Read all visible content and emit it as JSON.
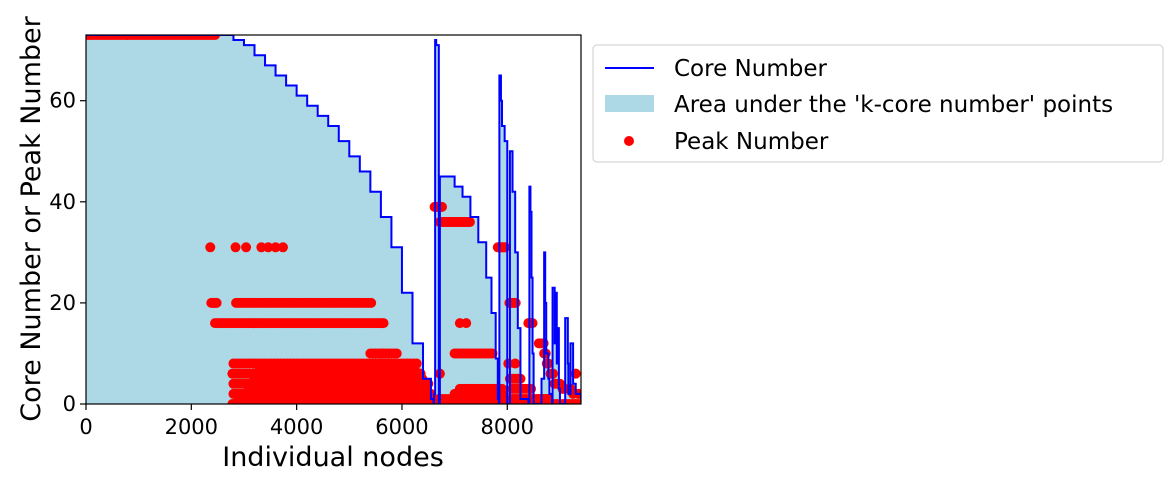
{
  "chart_data": {
    "type": "line",
    "xlabel": "Individual nodes",
    "ylabel": "Core Number or Peak Number",
    "xlim": [
      0,
      9400
    ],
    "ylim": [
      0,
      73
    ],
    "xticks": [
      0,
      2000,
      4000,
      6000,
      8000
    ],
    "yticks": [
      0,
      20,
      40,
      60
    ],
    "grid": false,
    "legend_placement": "outside upper-right",
    "colors": {
      "core": "#0000ff",
      "area": "#add8e6",
      "peak": "#ff0000"
    },
    "series": [
      {
        "name": "Core Number",
        "kind": "line",
        "x": [
          0,
          2450,
          2800,
          3000,
          3200,
          3400,
          3600,
          3800,
          4000,
          4200,
          4400,
          4600,
          4800,
          5000,
          5200,
          5400,
          5600,
          5800,
          6000,
          6200,
          6400,
          6550,
          6600,
          6610,
          6630,
          6650,
          6700,
          6720,
          6750,
          6800,
          6900,
          7000,
          7150,
          7300,
          7450,
          7600,
          7700,
          7780,
          7820,
          7840,
          7850,
          7880,
          7900,
          7950,
          8000,
          8050,
          8100,
          8150,
          8200,
          8250,
          8400,
          8420,
          8440,
          8460,
          8480,
          8500,
          8600,
          8650,
          8700,
          8720,
          8740,
          8780,
          8800,
          8850,
          8860,
          8900,
          8920,
          8940,
          8960,
          8980,
          9000,
          9050,
          9100,
          9150,
          9160,
          9200,
          9250,
          9300,
          9400
        ],
        "y": [
          73,
          73,
          72,
          71,
          69,
          67,
          65,
          63,
          61,
          59,
          57,
          55,
          52,
          49,
          46,
          42,
          37,
          31,
          22,
          12,
          5,
          1,
          0,
          2,
          72,
          71,
          0,
          45,
          45,
          45,
          45,
          43,
          41,
          37,
          32,
          25,
          18,
          9,
          1,
          0,
          65,
          60,
          55,
          52,
          0,
          50,
          42,
          30,
          15,
          1,
          0,
          43,
          38,
          25,
          10,
          0,
          0,
          5,
          30,
          20,
          10,
          5,
          2,
          0,
          23,
          12,
          22,
          8,
          15,
          3,
          0,
          0,
          17,
          8,
          2,
          12,
          4,
          2,
          1
        ]
      },
      {
        "name": "Area under the 'k-core number' points",
        "kind": "area"
      },
      {
        "name": "Peak Number",
        "kind": "scatter",
        "groups": [
          {
            "y": 73,
            "x_from": 0,
            "x_to": 2450,
            "step": 50
          },
          {
            "y": 31,
            "x_list": [
              2360,
              2840,
              3040,
              3330,
              3460,
              3600,
              3740
            ]
          },
          {
            "y": 20,
            "x_from": 2380,
            "x_to": 2480,
            "step": 25
          },
          {
            "y": 20,
            "x_from": 2850,
            "x_to": 5450,
            "step": 45
          },
          {
            "y": 16,
            "x_from": 2450,
            "x_to": 5650,
            "step": 40
          },
          {
            "y": 10,
            "x_from": 5400,
            "x_to": 5900,
            "step": 50
          },
          {
            "y": 8,
            "x_from": 2800,
            "x_to": 6300,
            "step": 60
          },
          {
            "y": 7,
            "x_from": 3300,
            "x_to": 6300,
            "step": 70
          },
          {
            "y": 6,
            "x_from": 2780,
            "x_to": 6400,
            "step": 55
          },
          {
            "y": 5,
            "x_from": 3200,
            "x_to": 6400,
            "step": 65
          },
          {
            "y": 4,
            "x_from": 2800,
            "x_to": 6500,
            "step": 50
          },
          {
            "y": 3,
            "x_from": 3100,
            "x_to": 6500,
            "step": 60
          },
          {
            "y": 2,
            "x_from": 2800,
            "x_to": 6550,
            "step": 50
          },
          {
            "y": 1,
            "x_from": 2900,
            "x_to": 6550,
            "step": 55
          },
          {
            "y": 0,
            "x_from": 2780,
            "x_to": 6600,
            "step": 50
          },
          {
            "y": 39,
            "x_from": 6620,
            "x_to": 6760,
            "step": 20
          },
          {
            "y": 36,
            "x_from": 6720,
            "x_to": 7300,
            "step": 30
          },
          {
            "y": 16,
            "x_list": [
              7100,
              7220
            ]
          },
          {
            "y": 10,
            "x_from": 7000,
            "x_to": 7750,
            "step": 40
          },
          {
            "y": 6,
            "x_list": [
              6720
            ]
          },
          {
            "y": 3,
            "x_from": 7100,
            "x_to": 7900,
            "step": 50
          },
          {
            "y": 2,
            "x_from": 7000,
            "x_to": 7950,
            "step": 55
          },
          {
            "y": 1,
            "x_from": 6700,
            "x_to": 8000,
            "step": 60
          },
          {
            "y": 0,
            "x_from": 6650,
            "x_to": 8100,
            "step": 50
          },
          {
            "y": 31,
            "x_from": 7820,
            "x_to": 7960,
            "step": 20
          },
          {
            "y": 20,
            "x_from": 8040,
            "x_to": 8180,
            "step": 30
          },
          {
            "y": 16,
            "x_from": 8400,
            "x_to": 8480,
            "step": 20
          },
          {
            "y": 8,
            "x_list": [
              8150,
              8020
            ]
          },
          {
            "y": 5,
            "x_from": 8050,
            "x_to": 8250,
            "step": 40
          },
          {
            "y": 3,
            "x_from": 8100,
            "x_to": 8450,
            "step": 50
          },
          {
            "y": 1,
            "x_from": 8100,
            "x_to": 8800,
            "step": 45
          },
          {
            "y": 0,
            "x_from": 8100,
            "x_to": 9400,
            "step": 60
          },
          {
            "y": 12,
            "x_list": [
              8600,
              8640,
              8690
            ]
          },
          {
            "y": 10,
            "x_list": [
              8700,
              8730
            ]
          },
          {
            "y": 8,
            "x_list": [
              8750,
              8780
            ]
          },
          {
            "y": 6,
            "x_list": [
              8820,
              8870,
              9300
            ]
          },
          {
            "y": 4,
            "x_list": [
              8900,
              8950,
              9000
            ]
          },
          {
            "y": 3,
            "x_list": [
              9050,
              9100,
              9200
            ]
          },
          {
            "y": 2,
            "x_list": [
              9250,
              9350
            ]
          }
        ]
      }
    ]
  }
}
